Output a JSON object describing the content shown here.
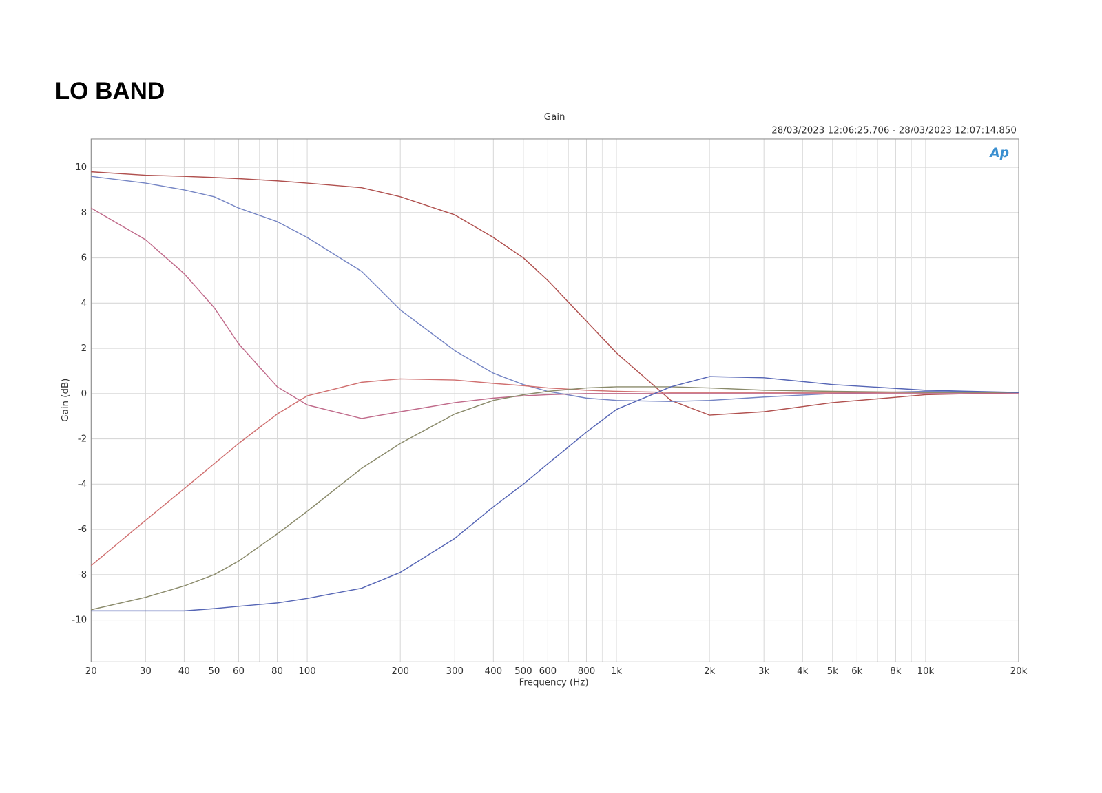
{
  "header": {
    "title": "LO BAND"
  },
  "chart_data": {
    "type": "line",
    "title": "Gain",
    "subtitle": "28/03/2023 12:06:25.706 - 28/03/2023 12:07:14.850",
    "logo": "Ap",
    "x_label": "Frequency (Hz)",
    "y_label": "Gain (dB)",
    "x_scale": "log",
    "grid": true,
    "xlim": [
      20,
      20000
    ],
    "ylim": [
      -11.85,
      11.25
    ],
    "xticks": [
      20,
      30,
      40,
      50,
      60,
      80,
      100,
      200,
      300,
      400,
      500,
      600,
      800,
      {
        "value": 1000,
        "label": "1k"
      },
      {
        "value": 2000,
        "label": "2k"
      },
      {
        "value": 3000,
        "label": "3k"
      },
      {
        "value": 4000,
        "label": "4k"
      },
      {
        "value": 5000,
        "label": "5k"
      },
      {
        "value": 6000,
        "label": "6k"
      },
      {
        "value": 8000,
        "label": "8k"
      },
      {
        "value": 10000,
        "label": "10k"
      },
      {
        "value": 20000,
        "label": "20k"
      }
    ],
    "xgrid_minor": [
      70,
      90,
      700,
      900,
      7000,
      9000
    ],
    "yticks": [
      -10,
      -8,
      -6,
      -4,
      -2,
      0,
      2,
      4,
      6,
      8,
      10
    ],
    "x": [
      20,
      30,
      40,
      50,
      60,
      80,
      100,
      150,
      200,
      300,
      400,
      500,
      600,
      800,
      1000,
      1500,
      2000,
      3000,
      5000,
      10000,
      20000
    ],
    "series": [
      {
        "color": "#b0504e",
        "values": [
          9.8,
          9.65,
          9.6,
          9.55,
          9.5,
          9.4,
          9.3,
          9.1,
          8.7,
          7.9,
          6.9,
          6.0,
          5.0,
          3.2,
          1.8,
          -0.3,
          -0.95,
          -0.8,
          -0.4,
          -0.05,
          0.05
        ]
      },
      {
        "color": "#7585c4",
        "values": [
          9.6,
          9.3,
          9.0,
          8.7,
          8.2,
          7.6,
          6.9,
          5.4,
          3.7,
          1.9,
          0.9,
          0.4,
          0.1,
          -0.2,
          -0.3,
          -0.35,
          -0.3,
          -0.15,
          0,
          0.1,
          0.05
        ]
      },
      {
        "color": "#c06a8a",
        "values": [
          8.2,
          6.8,
          5.3,
          3.8,
          2.2,
          0.3,
          -0.5,
          -1.1,
          -0.8,
          -0.4,
          -0.2,
          -0.1,
          -0.05,
          0,
          0,
          0,
          0,
          0,
          0,
          0,
          0
        ]
      },
      {
        "color": "#d07070",
        "values": [
          -7.6,
          -5.6,
          -4.2,
          -3.1,
          -2.2,
          -0.9,
          -0.1,
          0.5,
          0.65,
          0.6,
          0.45,
          0.35,
          0.25,
          0.15,
          0.1,
          0.05,
          0.05,
          0.05,
          0.05,
          0.05,
          0.05
        ]
      },
      {
        "color": "#8a8a6a",
        "values": [
          -9.55,
          -9.0,
          -8.5,
          -8.0,
          -7.4,
          -6.2,
          -5.2,
          -3.3,
          -2.2,
          -0.9,
          -0.3,
          -0.05,
          0.1,
          0.25,
          0.3,
          0.3,
          0.25,
          0.15,
          0.1,
          0.05,
          0.05
        ]
      },
      {
        "color": "#5565b5",
        "values": [
          -9.6,
          -9.6,
          -9.6,
          -9.5,
          -9.4,
          -9.25,
          -9.05,
          -8.6,
          -7.9,
          -6.4,
          -5.0,
          -4.0,
          -3.1,
          -1.7,
          -0.7,
          0.3,
          0.75,
          0.7,
          0.4,
          0.15,
          0.05
        ]
      }
    ]
  }
}
